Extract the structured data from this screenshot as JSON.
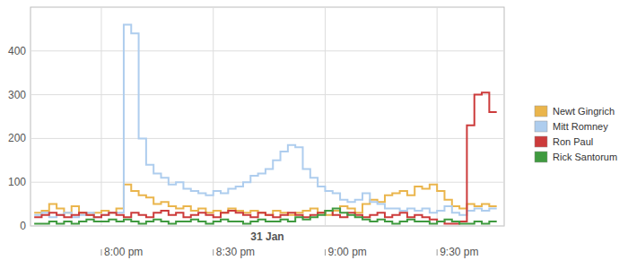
{
  "chart_data": {
    "type": "line",
    "line_style": "step",
    "grid": true,
    "legend": "right",
    "xlabel": "31 Jan",
    "xlim": [
      1181,
      1308
    ],
    "xticks": [
      {
        "value": 1200,
        "label": "8:00 pm"
      },
      {
        "value": 1230,
        "label": "8:30 pm"
      },
      {
        "value": 1260,
        "label": "9:00 pm"
      },
      {
        "value": 1290,
        "label": "9:30 pm"
      }
    ],
    "ylim": [
      0,
      500
    ],
    "yticks": [
      0,
      100,
      200,
      300,
      400
    ],
    "x": [
      1182,
      1184,
      1186,
      1188,
      1190,
      1192,
      1194,
      1196,
      1198,
      1200,
      1202,
      1204,
      1206,
      1208,
      1210,
      1212,
      1214,
      1216,
      1218,
      1220,
      1222,
      1224,
      1226,
      1228,
      1230,
      1232,
      1234,
      1236,
      1238,
      1240,
      1242,
      1244,
      1246,
      1248,
      1250,
      1252,
      1254,
      1256,
      1258,
      1260,
      1262,
      1264,
      1266,
      1268,
      1270,
      1272,
      1274,
      1276,
      1278,
      1280,
      1282,
      1284,
      1286,
      1288,
      1290,
      1292,
      1294,
      1296,
      1298,
      1300,
      1302,
      1304
    ],
    "series": [
      {
        "name": "Newt Gingrich",
        "color": "#eab54c",
        "values": [
          30,
          35,
          50,
          40,
          30,
          45,
          30,
          25,
          30,
          35,
          30,
          40,
          95,
          80,
          70,
          65,
          50,
          55,
          45,
          40,
          45,
          35,
          40,
          30,
          35,
          30,
          40,
          35,
          30,
          35,
          30,
          25,
          35,
          30,
          25,
          30,
          35,
          40,
          30,
          25,
          35,
          45,
          40,
          30,
          50,
          60,
          55,
          70,
          75,
          80,
          70,
          90,
          85,
          95,
          80,
          60,
          45,
          40,
          50,
          45,
          50,
          45
        ]
      },
      {
        "name": "Mitt Romney",
        "color": "#aecdee",
        "values": [
          25,
          30,
          20,
          25,
          30,
          20,
          25,
          30,
          20,
          25,
          30,
          30,
          460,
          440,
          200,
          140,
          120,
          110,
          95,
          100,
          85,
          80,
          75,
          70,
          80,
          75,
          85,
          90,
          100,
          115,
          120,
          130,
          150,
          170,
          185,
          180,
          130,
          110,
          90,
          80,
          75,
          60,
          55,
          60,
          75,
          55,
          50,
          40,
          40,
          35,
          40,
          35,
          40,
          30,
          35,
          45,
          30,
          25,
          35,
          40,
          35,
          40
        ]
      },
      {
        "name": "Ron Paul",
        "color": "#cc3b3b",
        "values": [
          20,
          25,
          30,
          25,
          20,
          25,
          30,
          25,
          20,
          25,
          30,
          25,
          20,
          30,
          25,
          20,
          30,
          35,
          25,
          30,
          20,
          25,
          30,
          25,
          20,
          30,
          35,
          30,
          25,
          20,
          30,
          25,
          20,
          25,
          30,
          25,
          20,
          25,
          30,
          35,
          25,
          20,
          30,
          25,
          20,
          25,
          30,
          20,
          25,
          30,
          20,
          25,
          20,
          15,
          10,
          5,
          5,
          10,
          230,
          300,
          305,
          260
        ]
      },
      {
        "name": "Rick Santorum",
        "color": "#3f9a3f",
        "values": [
          5,
          5,
          10,
          5,
          10,
          5,
          10,
          15,
          10,
          10,
          15,
          10,
          15,
          10,
          5,
          10,
          15,
          10,
          5,
          10,
          10,
          15,
          10,
          5,
          10,
          15,
          10,
          10,
          5,
          10,
          15,
          10,
          10,
          15,
          10,
          20,
          15,
          20,
          25,
          35,
          40,
          30,
          25,
          20,
          15,
          10,
          15,
          10,
          5,
          10,
          15,
          10,
          10,
          5,
          10,
          15,
          10,
          5,
          5,
          10,
          5,
          10
        ]
      }
    ]
  }
}
